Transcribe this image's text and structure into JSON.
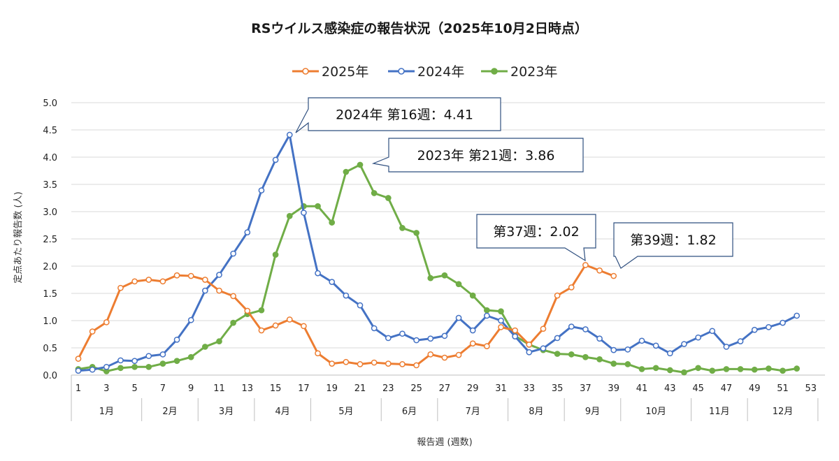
{
  "chart_data": {
    "type": "line",
    "title": "RSウイルス感染症の報告状況（2025年10月2日時点）",
    "xlabel": "報告週 (週数)",
    "ylabel": "定点あたり報告数 (人)",
    "ylim": [
      0,
      5.0
    ],
    "yticks": [
      "0.0",
      "0.5",
      "1.0",
      "1.5",
      "2.0",
      "2.5",
      "3.0",
      "3.5",
      "4.0",
      "4.5",
      "5.0"
    ],
    "xlim": [
      1,
      53
    ],
    "xticks": [
      "1",
      "3",
      "5",
      "7",
      "9",
      "11",
      "13",
      "15",
      "17",
      "19",
      "21",
      "23",
      "25",
      "27",
      "29",
      "31",
      "33",
      "35",
      "37",
      "39",
      "41",
      "43",
      "45",
      "47",
      "49",
      "51",
      "53"
    ],
    "months": [
      {
        "label": "1月",
        "start": 0.5,
        "end": 5.5
      },
      {
        "label": "2月",
        "start": 5.5,
        "end": 9.5
      },
      {
        "label": "3月",
        "start": 9.5,
        "end": 13.5
      },
      {
        "label": "4月",
        "start": 13.5,
        "end": 17.5
      },
      {
        "label": "5月",
        "start": 17.5,
        "end": 22.5
      },
      {
        "label": "6月",
        "start": 22.5,
        "end": 26.5
      },
      {
        "label": "7月",
        "start": 26.5,
        "end": 31.5
      },
      {
        "label": "8月",
        "start": 31.5,
        "end": 35.5
      },
      {
        "label": "9月",
        "start": 35.5,
        "end": 39.5
      },
      {
        "label": "10月",
        "start": 39.5,
        "end": 44.5
      },
      {
        "label": "11月",
        "start": 44.5,
        "end": 48.5
      },
      {
        "label": "12月",
        "start": 48.5,
        "end": 53.5
      }
    ],
    "grid": true,
    "legend_position": "top-center",
    "series": [
      {
        "name": "2025年",
        "color": "#ed7d31",
        "values": [
          0.3,
          0.8,
          0.97,
          1.6,
          1.72,
          1.75,
          1.72,
          1.83,
          1.82,
          1.75,
          1.55,
          1.45,
          1.18,
          0.82,
          0.91,
          1.02,
          0.9,
          0.4,
          0.21,
          0.24,
          0.2,
          0.23,
          0.21,
          0.2,
          0.18,
          0.38,
          0.32,
          0.37,
          0.58,
          0.53,
          0.88,
          0.82,
          0.56,
          0.85,
          1.46,
          1.61,
          2.02,
          1.92,
          1.82
        ]
      },
      {
        "name": "2024年",
        "color": "#4472c4",
        "values": [
          0.08,
          0.1,
          0.15,
          0.27,
          0.26,
          0.35,
          0.38,
          0.65,
          1.01,
          1.55,
          1.84,
          2.23,
          2.62,
          3.39,
          3.95,
          4.41,
          2.98,
          1.87,
          1.71,
          1.46,
          1.28,
          0.86,
          0.68,
          0.76,
          0.64,
          0.67,
          0.72,
          1.05,
          0.82,
          1.09,
          1.0,
          0.71,
          0.42,
          0.49,
          0.68,
          0.89,
          0.84,
          0.67,
          0.46,
          0.47,
          0.63,
          0.54,
          0.4,
          0.57,
          0.69,
          0.81,
          0.52,
          0.62,
          0.83,
          0.88,
          0.96,
          1.09
        ]
      },
      {
        "name": "2023年",
        "color": "#70ad47",
        "values": [
          0.11,
          0.15,
          0.07,
          0.13,
          0.15,
          0.15,
          0.21,
          0.26,
          0.33,
          0.52,
          0.62,
          0.96,
          1.12,
          1.19,
          2.21,
          2.92,
          3.1,
          3.1,
          2.8,
          3.73,
          3.86,
          3.34,
          3.25,
          2.7,
          2.61,
          1.78,
          1.83,
          1.67,
          1.46,
          1.19,
          1.17,
          0.72,
          0.56,
          0.46,
          0.39,
          0.38,
          0.33,
          0.29,
          0.21,
          0.2,
          0.11,
          0.13,
          0.09,
          0.05,
          0.13,
          0.08,
          0.11,
          0.11,
          0.1,
          0.12,
          0.08,
          0.12
        ]
      }
    ],
    "annotations": [
      {
        "text": "2024年 第16週：4.41"
      },
      {
        "text": "2023年 第21週：3.86"
      },
      {
        "text": "第37週：2.02"
      },
      {
        "text": "第39週：1.82"
      }
    ]
  }
}
